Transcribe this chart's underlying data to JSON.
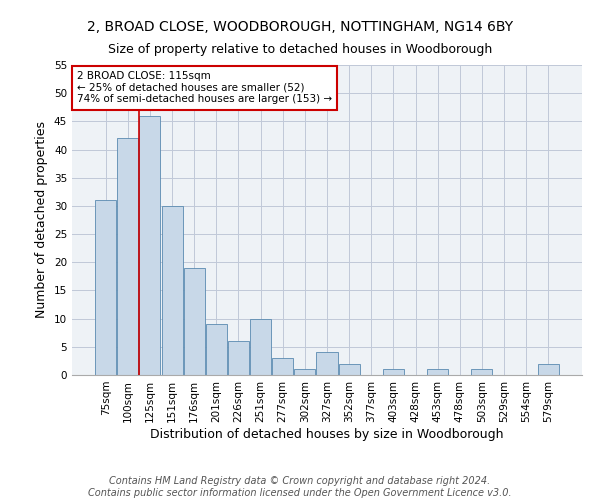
{
  "title_line1": "2, BROAD CLOSE, WOODBOROUGH, NOTTINGHAM, NG14 6BY",
  "title_line2": "Size of property relative to detached houses in Woodborough",
  "xlabel": "Distribution of detached houses by size in Woodborough",
  "ylabel": "Number of detached properties",
  "categories": [
    "75sqm",
    "100sqm",
    "125sqm",
    "151sqm",
    "176sqm",
    "201sqm",
    "226sqm",
    "251sqm",
    "277sqm",
    "302sqm",
    "327sqm",
    "352sqm",
    "377sqm",
    "403sqm",
    "428sqm",
    "453sqm",
    "478sqm",
    "503sqm",
    "529sqm",
    "554sqm",
    "579sqm"
  ],
  "values": [
    31,
    42,
    46,
    30,
    19,
    9,
    6,
    10,
    3,
    1,
    4,
    2,
    0,
    1,
    0,
    1,
    0,
    1,
    0,
    0,
    2
  ],
  "bar_color": "#c8d8e8",
  "bar_edge_color": "#5a8ab0",
  "highlight_color": "#cc0000",
  "ylim": [
    0,
    55
  ],
  "yticks": [
    0,
    5,
    10,
    15,
    20,
    25,
    30,
    35,
    40,
    45,
    50,
    55
  ],
  "annotation_line1": "2 BROAD CLOSE: 115sqm",
  "annotation_line2": "← 25% of detached houses are smaller (52)",
  "annotation_line3": "74% of semi-detached houses are larger (153) →",
  "annotation_box_color": "#ffffff",
  "annotation_border_color": "#cc0000",
  "footer_line1": "Contains HM Land Registry data © Crown copyright and database right 2024.",
  "footer_line2": "Contains public sector information licensed under the Open Government Licence v3.0.",
  "bg_color": "#eef2f6",
  "grid_color": "#c0c8d8",
  "title_fontsize": 10,
  "subtitle_fontsize": 9,
  "tick_fontsize": 7.5,
  "label_fontsize": 9,
  "footer_fontsize": 7,
  "red_line_x": 1.5
}
